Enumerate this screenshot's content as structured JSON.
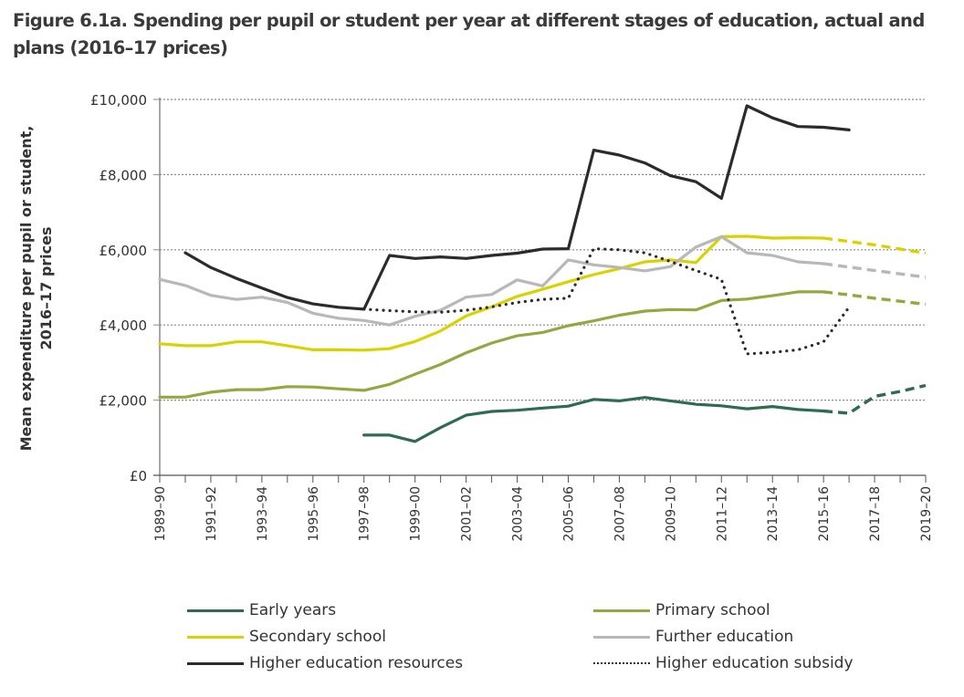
{
  "title": "Figure 6.1a. Spending per pupil or student per year at different stages of education, actual and plans (2016–17 prices)",
  "chart_data": {
    "type": "line",
    "title": "Figure 6.1a. Spending per pupil or student per year at different stages of education, actual and plans (2016–17 prices)",
    "xlabel": "",
    "ylabel_lines": [
      "Mean expenditure per pupil or student,",
      "2016–17 prices"
    ],
    "ylim": [
      0,
      10000
    ],
    "yticks": [
      0,
      2000,
      4000,
      6000,
      8000,
      10000
    ],
    "ytick_labels": [
      "£0",
      "£2,000",
      "£4,000",
      "£6,000",
      "£8,000",
      "£10,000"
    ],
    "grid": "horizontal dotted",
    "legend_position": "bottom",
    "x": [
      "1989–90",
      "1990–91",
      "1991–92",
      "1992–93",
      "1993–94",
      "1994–95",
      "1995–96",
      "1996–97",
      "1997–98",
      "1998–99",
      "1999–00",
      "2000–01",
      "2001–02",
      "2002–03",
      "2003–04",
      "2004–05",
      "2005–06",
      "2006–07",
      "2007–08",
      "2008–09",
      "2009–10",
      "2010–11",
      "2011–12",
      "2012–13",
      "2013–14",
      "2014–15",
      "2015–16",
      "2016–17",
      "2017–18",
      "2018–19",
      "2019–20"
    ],
    "xtick_labels": [
      "1989–90",
      "1991–92",
      "1993–94",
      "1995–96",
      "1997–98",
      "1999–00",
      "2001–02",
      "2003–04",
      "2005–06",
      "2007–08",
      "2009–10",
      "2011–12",
      "2013–14",
      "2015–16",
      "2017–18",
      "2019–20"
    ],
    "series": [
      {
        "name": "Early years",
        "color": "#2e6b4f",
        "style": "solid",
        "values": [
          null,
          null,
          null,
          null,
          null,
          null,
          null,
          null,
          1070,
          1070,
          900,
          1270,
          1600,
          1700,
          1730,
          1790,
          1840,
          2020,
          1980,
          2070,
          1980,
          1890,
          1850,
          1770,
          1830,
          1750,
          1710,
          null,
          null,
          null,
          null
        ],
        "plans": [
          null,
          null,
          null,
          null,
          null,
          null,
          null,
          null,
          null,
          null,
          null,
          null,
          null,
          null,
          null,
          null,
          null,
          null,
          null,
          null,
          null,
          null,
          null,
          null,
          null,
          null,
          1710,
          1650,
          2100,
          2230,
          2390
        ]
      },
      {
        "name": "Primary school",
        "color": "#93a840",
        "style": "solid",
        "values": [
          2080,
          2080,
          2210,
          2280,
          2280,
          2360,
          2350,
          2300,
          2260,
          2420,
          2690,
          2950,
          3260,
          3520,
          3710,
          3800,
          3980,
          4110,
          4260,
          4370,
          4410,
          4400,
          4650,
          4690,
          4780,
          4880,
          4880,
          null,
          null,
          null,
          null
        ],
        "plans": [
          null,
          null,
          null,
          null,
          null,
          null,
          null,
          null,
          null,
          null,
          null,
          null,
          null,
          null,
          null,
          null,
          null,
          null,
          null,
          null,
          null,
          null,
          null,
          null,
          null,
          null,
          4880,
          4800,
          4710,
          4630,
          4550
        ]
      },
      {
        "name": "Secondary school",
        "color": "#d9d200",
        "style": "solid",
        "values": [
          3500,
          3450,
          3450,
          3550,
          3550,
          3450,
          3340,
          3340,
          3330,
          3370,
          3560,
          3840,
          4240,
          4480,
          4760,
          4950,
          5150,
          5340,
          5500,
          5680,
          5730,
          5660,
          6350,
          6360,
          6310,
          6320,
          6310,
          null,
          null,
          null,
          null
        ],
        "plans": [
          null,
          null,
          null,
          null,
          null,
          null,
          null,
          null,
          null,
          null,
          null,
          null,
          null,
          null,
          null,
          null,
          null,
          null,
          null,
          null,
          null,
          null,
          null,
          null,
          null,
          null,
          6310,
          6220,
          6130,
          6020,
          5910
        ]
      },
      {
        "name": "Further education",
        "color": "#b8b8b8",
        "style": "solid",
        "values": [
          5210,
          5050,
          4790,
          4680,
          4740,
          4600,
          4310,
          4180,
          4120,
          4000,
          4230,
          4390,
          4740,
          4810,
          5200,
          5040,
          5730,
          5600,
          5530,
          5440,
          5550,
          6070,
          6350,
          5920,
          5850,
          5680,
          5630,
          null,
          null,
          null,
          null
        ],
        "plans": [
          null,
          null,
          null,
          null,
          null,
          null,
          null,
          null,
          null,
          null,
          null,
          null,
          null,
          null,
          null,
          null,
          null,
          null,
          null,
          null,
          null,
          null,
          null,
          null,
          null,
          null,
          5630,
          5540,
          5450,
          5360,
          5270
        ]
      },
      {
        "name": "Higher education resources",
        "color": "#2b2b2b",
        "style": "solid",
        "values": [
          null,
          5920,
          5530,
          5240,
          4980,
          4730,
          4560,
          4470,
          4420,
          5850,
          5770,
          5810,
          5770,
          5850,
          5910,
          6020,
          6030,
          8650,
          8520,
          8310,
          7970,
          7810,
          7370,
          9830,
          9510,
          9280,
          9260,
          9190,
          null,
          null,
          null
        ],
        "plans": []
      },
      {
        "name": "Higher education subsidy",
        "color": "#2b2b2b",
        "style": "dotted",
        "values": [
          null,
          null,
          null,
          null,
          null,
          null,
          null,
          null,
          4420,
          4380,
          4350,
          4340,
          4390,
          4480,
          4600,
          4680,
          4710,
          6030,
          6000,
          5920,
          5690,
          5450,
          5210,
          3230,
          3270,
          3340,
          3550,
          4470,
          null,
          null,
          null
        ],
        "plans": []
      }
    ]
  },
  "legend": [
    {
      "label": "Early years"
    },
    {
      "label": "Primary school"
    },
    {
      "label": "Secondary school"
    },
    {
      "label": "Further education"
    },
    {
      "label": "Higher education resources"
    },
    {
      "label": "Higher education subsidy"
    }
  ]
}
